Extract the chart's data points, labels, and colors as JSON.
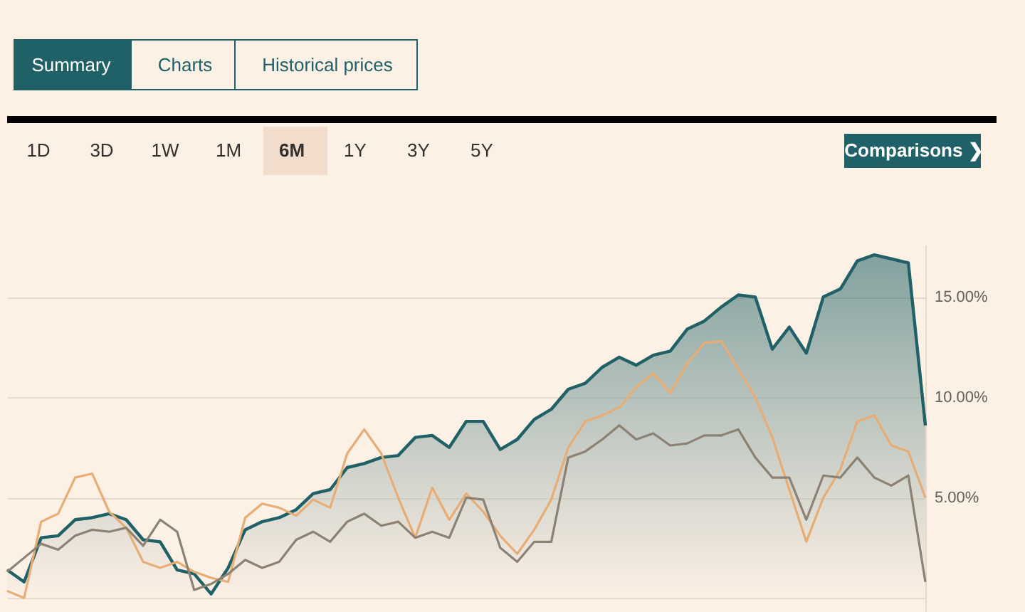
{
  "chart_data": {
    "type": "line",
    "annotations": [
      "Summary",
      "Charts",
      "Historical prices",
      "1D",
      "3D",
      "1W",
      "1M",
      "6M",
      "1Y",
      "3Y",
      "5Y",
      "Comparisons ❯"
    ],
    "categories": [
      null,
      null,
      null,
      null,
      null,
      null,
      null,
      null,
      null,
      null,
      null,
      null,
      null,
      null,
      null,
      null,
      null,
      null,
      null,
      null,
      null,
      null,
      null,
      null,
      null,
      null,
      null,
      null,
      null,
      null,
      null,
      null,
      null,
      null,
      null,
      null,
      null,
      null,
      null,
      null,
      null,
      null,
      null,
      null,
      null,
      null,
      null,
      null,
      null,
      null,
      null,
      null,
      null,
      null,
      null
    ],
    "series": [
      {
        "type": "area",
        "color": "#1f6166",
        "values": [
          1.4,
          0.8,
          3.0,
          3.1,
          3.9,
          4.0,
          4.2,
          3.9,
          2.9,
          2.8,
          1.4,
          1.2,
          0.2,
          1.5,
          3.4,
          3.8,
          4.0,
          4.4,
          5.2,
          5.4,
          6.5,
          6.7,
          7.0,
          7.1,
          8.0,
          8.1,
          7.5,
          8.8,
          8.8,
          7.4,
          7.9,
          8.9,
          9.4,
          10.4,
          10.7,
          11.5,
          12.0,
          11.6,
          12.1,
          12.3,
          13.4,
          13.8,
          14.5,
          15.1,
          15.0,
          12.4,
          13.5,
          12.2,
          15.0,
          15.4,
          16.8,
          17.1,
          16.9,
          16.7,
          8.6
        ]
      },
      {
        "type": "line",
        "color": "#e8ad74",
        "values": [
          0.35,
          0.0,
          3.8,
          4.2,
          6.0,
          6.2,
          4.3,
          3.5,
          1.8,
          1.5,
          1.8,
          1.3,
          1.0,
          0.8,
          4.0,
          4.7,
          4.5,
          4.1,
          4.9,
          4.5,
          7.2,
          8.4,
          7.2,
          5.0,
          3.0,
          5.5,
          3.9,
          5.2,
          4.3,
          3.1,
          2.2,
          3.4,
          4.9,
          7.5,
          8.8,
          9.1,
          9.5,
          10.5,
          11.2,
          10.2,
          11.7,
          12.7,
          12.8,
          11.4,
          10.0,
          8.0,
          5.4,
          2.8,
          5.0,
          6.4,
          8.8,
          9.1,
          7.6,
          7.3,
          5.0
        ]
      },
      {
        "type": "line",
        "color": "#8c8274",
        "values": [
          1.3,
          2.0,
          2.7,
          2.4,
          3.1,
          3.4,
          3.3,
          3.5,
          2.6,
          3.9,
          3.3,
          0.4,
          0.7,
          1.2,
          1.9,
          1.5,
          1.8,
          2.9,
          3.3,
          2.8,
          3.8,
          4.2,
          3.6,
          3.8,
          3.0,
          3.3,
          3.0,
          5.0,
          4.9,
          2.5,
          1.8,
          2.8,
          2.8,
          7.0,
          7.3,
          7.9,
          8.6,
          7.9,
          8.2,
          7.6,
          7.7,
          8.1,
          8.1,
          8.4,
          7.0,
          6.0,
          6.0,
          3.9,
          6.1,
          6.0,
          7.0,
          6.0,
          5.6,
          6.1,
          0.8
        ]
      }
    ],
    "ylim": [
      -0.7,
      17.6
    ],
    "yticks": [
      {
        "value": 0,
        "label": null
      },
      {
        "value": 5,
        "label": "5.00%"
      },
      {
        "value": 10,
        "label": "10.00%"
      },
      {
        "value": 15,
        "label": "15.00%"
      }
    ],
    "grid": "y",
    "tick_labels": "y",
    "line_style": "solid",
    "marker": "none"
  }
}
